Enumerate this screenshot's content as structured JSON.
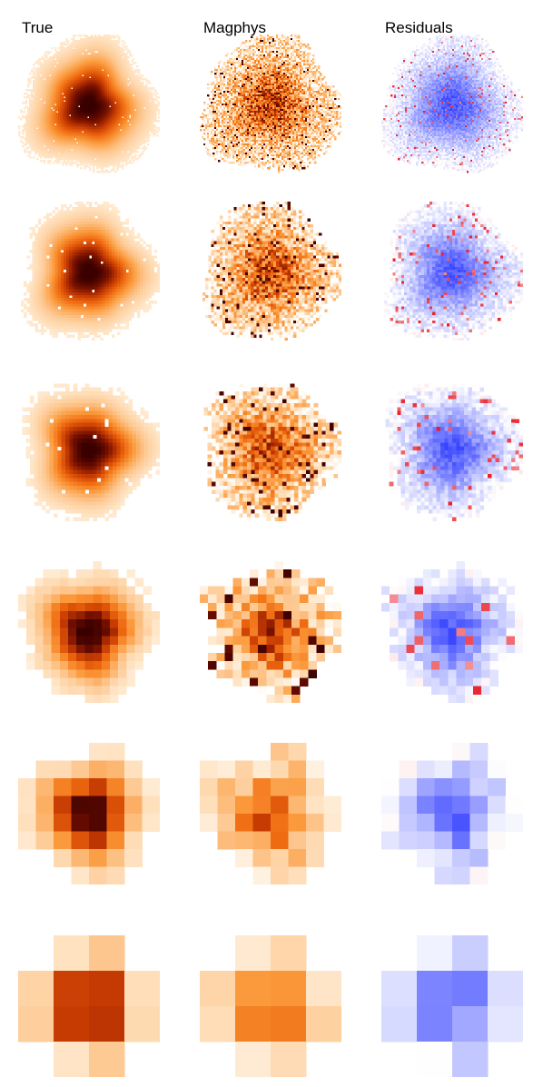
{
  "figure": {
    "columns": [
      {
        "key": "true",
        "label": "True"
      },
      {
        "key": "magphys",
        "label": "Magphys"
      },
      {
        "key": "residuals",
        "label": "Residuals"
      }
    ],
    "rows": [
      {
        "grid": 78,
        "holes": 0.015,
        "noise_true": 0.0,
        "noise_model": 0.55,
        "speckle": 0.04
      },
      {
        "grid": 50,
        "holes": 0.02,
        "noise_true": 0.0,
        "noise_model": 0.5,
        "speckle": 0.05
      },
      {
        "grid": 36,
        "holes": 0.02,
        "noise_true": 0.0,
        "noise_model": 0.45,
        "speckle": 0.05
      },
      {
        "grid": 17,
        "holes": 0.0,
        "noise_true": 0.05,
        "noise_model": 0.45,
        "speckle": 0.06
      },
      {
        "grid": 8,
        "holes": 0.0,
        "noise_true": 0.05,
        "noise_model": 0.25,
        "speckle": 0.0
      },
      {
        "grid": 4,
        "holes": 0.0,
        "noise_true": 0.0,
        "noise_model": 0.1,
        "speckle": 0.0
      }
    ],
    "colormaps": {
      "flux": [
        "#ffffff",
        "#ffe6c8",
        "#fdc48a",
        "#fb9a3c",
        "#ef6a10",
        "#c63b02",
        "#7a1200",
        "#3a0000"
      ],
      "residual_neg": "#2f3cff",
      "residual_pos": "#e8202a",
      "residual_mid": "#ffffff"
    }
  }
}
